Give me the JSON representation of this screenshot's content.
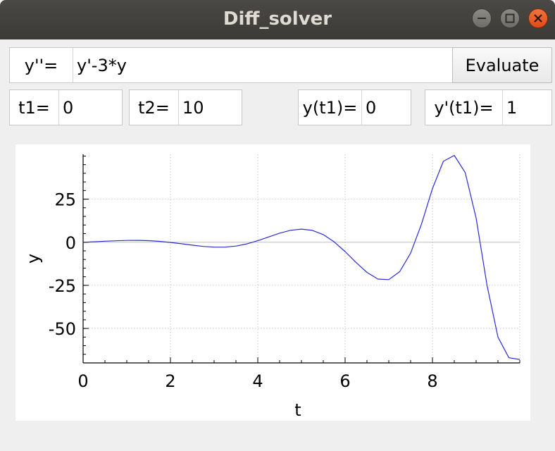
{
  "window": {
    "title": "Diff_solver"
  },
  "equation": {
    "label": "y''=",
    "value": "y'-3*y",
    "evaluate_label": "Evaluate"
  },
  "params": {
    "t1_label": "t1=",
    "t1_value": "0",
    "t2_label": "t2=",
    "t2_value": "10",
    "y_t1_label": "y(t1)=",
    "y_t1_value": "0",
    "dy_t1_label": "y'(t1)=",
    "dy_t1_value": "1"
  },
  "colors": {
    "curve": "#2a2ad8",
    "grid": "#c8c8c8",
    "close_button": "#e95420"
  },
  "chart_data": {
    "type": "line",
    "xlabel": "t",
    "ylabel": "y",
    "xlim": [
      0,
      10
    ],
    "ylim": [
      -70,
      51
    ],
    "xticks": [
      0,
      2,
      4,
      6,
      8
    ],
    "yticks": [
      25,
      0,
      -25,
      -50
    ],
    "xtick_labels": [
      "0",
      "2",
      "4",
      "6",
      "8"
    ],
    "ytick_labels": [
      "25",
      "0",
      "-25",
      "-50"
    ],
    "grid": true,
    "series": [
      {
        "values_source": "solution of y''=y'-3*y, y(0)=0, y'(0)=1",
        "x": [
          0,
          0.25,
          0.5,
          0.75,
          1,
          1.25,
          1.5,
          1.75,
          2,
          2.25,
          2.5,
          2.75,
          3,
          3.25,
          3.5,
          3.75,
          4,
          4.25,
          4.5,
          4.75,
          5,
          5.25,
          5.5,
          5.75,
          6,
          6.25,
          6.5,
          6.75,
          7,
          7.25,
          7.5,
          7.75,
          8,
          8.25,
          8.5,
          8.75,
          9,
          9.25,
          9.5,
          9.75,
          10
        ],
        "y": [
          0,
          0.27,
          0.58,
          0.86,
          1.05,
          1.08,
          0.91,
          0.52,
          -0.1,
          -0.86,
          -1.69,
          -2.42,
          -2.85,
          -2.84,
          -2.22,
          -0.95,
          0.89,
          3.08,
          5.25,
          6.94,
          7.64,
          6.9,
          4.43,
          0.2,
          -5.43,
          -11.7,
          -17.48,
          -21.34,
          -21.69,
          -17.07,
          -6.31,
          10.61,
          31.12,
          46.96,
          50.4,
          40.4,
          14.0,
          -25.0,
          -55.0,
          -67.0,
          -68.0
        ]
      }
    ]
  }
}
